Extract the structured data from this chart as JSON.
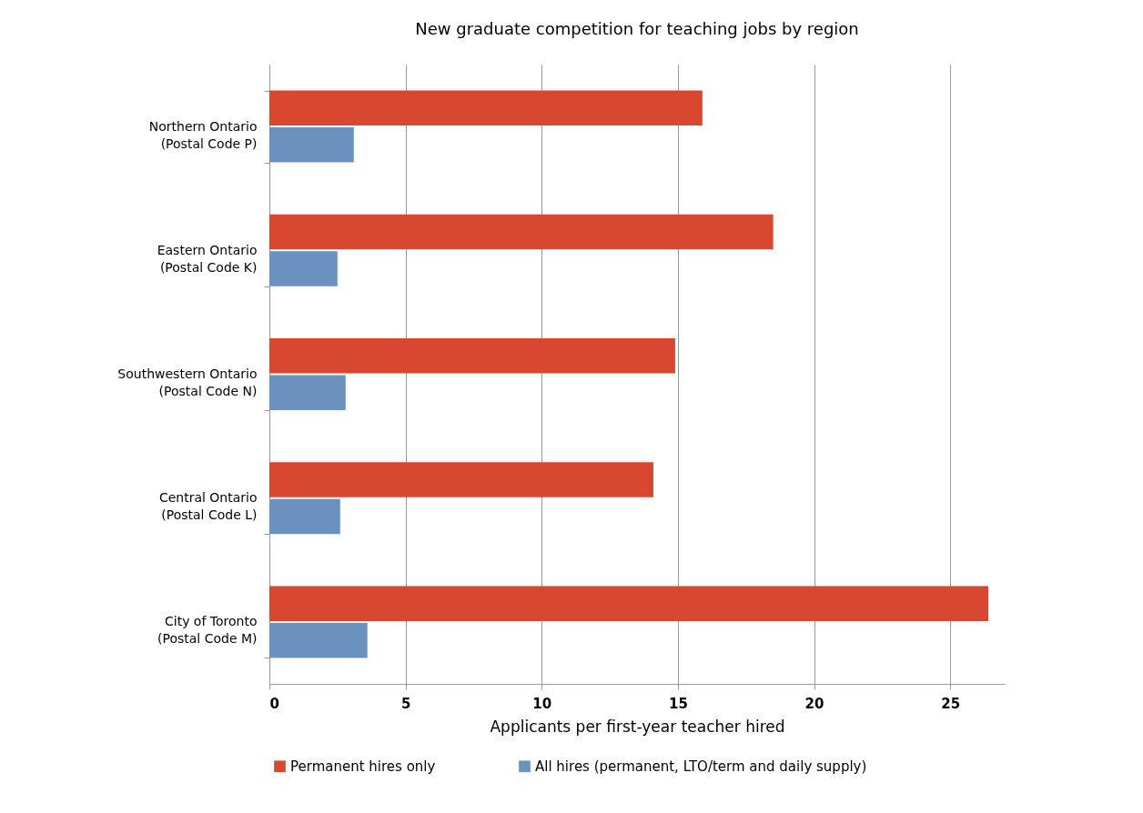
{
  "chart_data": {
    "type": "bar",
    "orientation": "horizontal",
    "title": "New graduate competition for teaching jobs by region",
    "xlabel": "Applicants per first-year teacher hired",
    "categories": [
      "Northern Ontario\n(Postal Code P)",
      "Eastern Ontario\n(Postal Code K)",
      "Southwestern Ontario\n(Postal Code N)",
      "Central Ontario\n(Postal Code L)",
      "City of Toronto\n(Postal Code M)"
    ],
    "series": [
      {
        "name": "Permanent hires only",
        "color": "#d8472f",
        "values": [
          15.9,
          18.5,
          14.9,
          14.1,
          26.4
        ]
      },
      {
        "name": "All hires (permanent, LTO/term and daily supply)",
        "color": "#6b91bf",
        "values": [
          3.1,
          2.5,
          2.8,
          2.6,
          3.6
        ]
      }
    ],
    "xlim": [
      0,
      27
    ],
    "xticks": [
      0,
      5,
      10,
      15,
      20,
      25
    ],
    "grid": "x",
    "legend": "bottom"
  }
}
